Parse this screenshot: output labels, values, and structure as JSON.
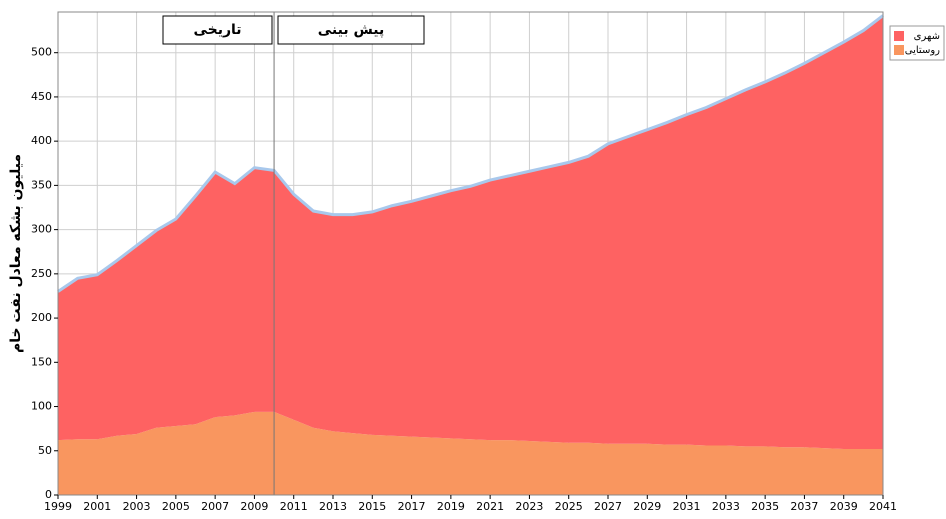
{
  "chart_data": {
    "type": "stacked_area",
    "ylabel": "میلیون بشکه معادل نفت خام",
    "annotations": [
      "تاریخی",
      "پیش بینی"
    ],
    "divider_x": 2010,
    "x": [
      1999,
      2000,
      2001,
      2002,
      2003,
      2004,
      2005,
      2006,
      2007,
      2008,
      2009,
      2010,
      2011,
      2012,
      2013,
      2014,
      2015,
      2016,
      2017,
      2018,
      2019,
      2020,
      2021,
      2022,
      2023,
      2024,
      2025,
      2026,
      2027,
      2028,
      2029,
      2030,
      2031,
      2032,
      2033,
      2034,
      2035,
      2036,
      2037,
      2038,
      2039,
      2040,
      2041
    ],
    "series": [
      {
        "name": "روستایی",
        "color": "#f9965f",
        "values": [
          62,
          63,
          63,
          67,
          69,
          76,
          78,
          80,
          88,
          90,
          94,
          94,
          85,
          76,
          72,
          70,
          68,
          67,
          66,
          65,
          64,
          63,
          62,
          62,
          61,
          60,
          59,
          59,
          58,
          58,
          58,
          57,
          57,
          56,
          56,
          55,
          55,
          54,
          54,
          53,
          52,
          52,
          52
        ]
      },
      {
        "name": "شهری",
        "color": "#fe6262",
        "values": [
          168,
          182,
          186,
          198,
          213,
          223,
          234,
          258,
          277,
          262,
          276,
          273,
          255,
          245,
          245,
          247,
          252,
          260,
          266,
          273,
          280,
          286,
          294,
          299,
          305,
          311,
          317,
          324,
          339,
          347,
          355,
          364,
          373,
          382,
          392,
          403,
          412,
          423,
          434,
          447,
          460,
          473,
          490
        ]
      }
    ],
    "legend_order": [
      1,
      0
    ],
    "xlim": [
      1999,
      2041
    ],
    "xticks": [
      1999,
      2001,
      2003,
      2005,
      2007,
      2009,
      2011,
      2013,
      2015,
      2017,
      2019,
      2021,
      2023,
      2025,
      2027,
      2029,
      2031,
      2033,
      2035,
      2037,
      2039,
      2041
    ],
    "ylim": [
      0,
      546
    ],
    "yticks": [
      0,
      50,
      100,
      150,
      200,
      250,
      300,
      350,
      400,
      450,
      500
    ],
    "grid": true,
    "outline_color": "#a8c8ec",
    "legend": "top-right"
  }
}
